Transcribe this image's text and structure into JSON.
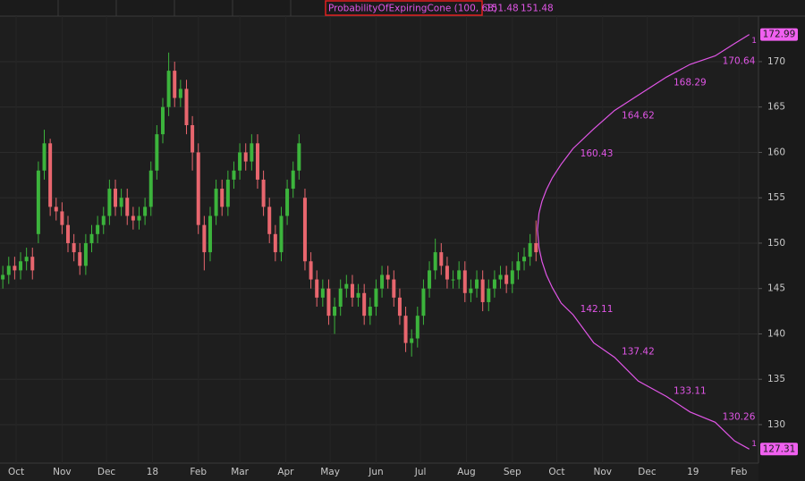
{
  "chart_data": {
    "type": "candlestick",
    "xlim": [
      -10.9,
      501.2
    ],
    "xticks": [
      {
        "value": 0,
        "label": "Oct"
      },
      {
        "value": 31,
        "label": "Nov"
      },
      {
        "value": 61,
        "label": "Dec"
      },
      {
        "value": 92,
        "label": "18"
      },
      {
        "value": 123,
        "label": "Feb"
      },
      {
        "value": 151,
        "label": "Mar"
      },
      {
        "value": 182,
        "label": "Apr"
      },
      {
        "value": 212,
        "label": "May"
      },
      {
        "value": 243,
        "label": "Jun"
      },
      {
        "value": 273,
        "label": "Jul"
      },
      {
        "value": 304,
        "label": "Aug"
      },
      {
        "value": 335,
        "label": "Sep"
      },
      {
        "value": 365,
        "label": "Oct"
      },
      {
        "value": 396,
        "label": "Nov"
      },
      {
        "value": 426,
        "label": "Dec"
      },
      {
        "value": 457,
        "label": "19"
      },
      {
        "value": 488,
        "label": "Feb"
      }
    ],
    "ylim": [
      125.76,
      175.02
    ],
    "yticks": [
      130,
      135,
      140,
      145,
      150,
      155,
      160,
      165,
      170
    ],
    "grid": true,
    "candles": {
      "up_color": "#3cb43c",
      "down_color": "#e8666e",
      "x": [
        -9,
        -5,
        -1,
        3,
        7,
        11,
        15,
        19,
        23,
        27,
        31,
        35,
        39,
        43,
        47,
        51,
        55,
        59,
        63,
        67,
        71,
        75,
        79,
        83,
        87,
        91,
        95,
        99,
        103,
        107,
        111,
        115,
        119,
        123,
        127,
        131,
        135,
        139,
        143,
        147,
        151,
        155,
        159,
        163,
        167,
        171,
        175,
        179,
        183,
        187,
        191,
        195,
        199,
        203,
        207,
        211,
        215,
        219,
        223,
        227,
        231,
        235,
        239,
        243,
        247,
        251,
        255,
        259,
        263,
        267,
        271,
        275,
        279,
        283,
        287,
        291,
        295,
        299,
        303,
        307,
        311,
        315,
        319,
        323,
        327,
        331,
        335,
        339,
        343,
        347,
        351
      ],
      "open": [
        146,
        146.5,
        147.5,
        147,
        148,
        148.5,
        151,
        158,
        161,
        154,
        153.5,
        152,
        150,
        149,
        147.5,
        150,
        151,
        152,
        153,
        156,
        154,
        155,
        153,
        152.5,
        153,
        154,
        158,
        162,
        165,
        169,
        166,
        167,
        163,
        160,
        152,
        149,
        153,
        156,
        154,
        157,
        158,
        160,
        159,
        161,
        157,
        154,
        151,
        149,
        153,
        156,
        158,
        155,
        148,
        146,
        144,
        145,
        142,
        143,
        145,
        145.5,
        144,
        144.5,
        142,
        143,
        145,
        146.5,
        146,
        144,
        142,
        139,
        139.5,
        142,
        145,
        147,
        149,
        147.5,
        146,
        146,
        147,
        144.5,
        145,
        146,
        143.5,
        145,
        146,
        146.5,
        145.5,
        147,
        148,
        148.5,
        150
      ],
      "high": [
        147.5,
        148.5,
        148.5,
        149,
        149.5,
        149.5,
        159,
        162.5,
        161.5,
        155,
        154.5,
        153,
        151,
        150,
        151,
        152,
        153,
        154,
        157,
        157,
        156,
        156,
        154,
        154,
        155,
        159,
        163,
        166,
        171,
        170,
        168,
        168,
        164,
        161,
        153,
        154,
        157,
        157,
        158,
        159,
        161,
        161,
        162,
        162,
        158,
        155,
        152,
        154,
        157,
        159,
        162,
        156,
        149,
        147,
        146,
        146,
        144,
        146,
        146.5,
        146.5,
        145.5,
        145.5,
        144,
        146,
        147.5,
        147.5,
        147,
        145,
        143,
        140.5,
        143,
        146,
        148,
        150.5,
        150,
        148.5,
        147,
        148,
        148,
        146,
        147,
        147,
        146,
        147,
        147.5,
        147.5,
        148,
        149,
        149.5,
        151,
        152.5
      ],
      "low": [
        145,
        145.5,
        146,
        146,
        147,
        146,
        150,
        157,
        153,
        152.5,
        151,
        149,
        148,
        146.5,
        146.5,
        149,
        150,
        151,
        152,
        153,
        153,
        152,
        151.5,
        151.5,
        152,
        153,
        157,
        161,
        164,
        165,
        165,
        162,
        158,
        151,
        147,
        148,
        152,
        153,
        153,
        156,
        157,
        158,
        158,
        156,
        153,
        150,
        148,
        148,
        152,
        155,
        157,
        147,
        145,
        143,
        143,
        141,
        140,
        142,
        144,
        143,
        143,
        141,
        141,
        142,
        144,
        145,
        143,
        141,
        138,
        137.5,
        138.5,
        141,
        144,
        146,
        146.5,
        145,
        145,
        145,
        143.5,
        143.5,
        144,
        142.5,
        142.5,
        144,
        145,
        144.5,
        144.5,
        146,
        147,
        147.5,
        148
      ],
      "close": [
        146.5,
        147.5,
        147,
        148,
        148.5,
        147,
        158,
        161,
        154,
        153.5,
        152,
        150,
        149,
        147.5,
        150,
        151,
        152,
        153,
        156,
        154,
        155,
        153,
        152.5,
        153,
        154,
        158,
        162,
        165,
        169,
        166,
        167,
        163,
        160,
        152,
        149,
        153,
        156,
        154,
        157,
        158,
        160,
        159,
        161,
        157,
        154,
        151,
        149,
        153,
        156,
        158,
        161,
        148,
        146,
        144,
        145,
        142,
        143,
        145,
        145.5,
        144,
        144.5,
        142,
        143,
        145,
        146.5,
        146,
        144,
        142,
        139,
        139.5,
        142,
        145,
        147,
        149,
        147.5,
        146,
        146,
        147,
        144.5,
        145,
        146,
        143.5,
        145,
        146,
        146.5,
        145.5,
        147,
        148,
        148.5,
        150,
        149
      ]
    },
    "study": {
      "name": "ProbabilityOfExpiringCone (100, 68)",
      "color": "#e055e6",
      "x": [
        352,
        353,
        355,
        358,
        362,
        368,
        376,
        390,
        404,
        420,
        439,
        455,
        472,
        485,
        495
      ],
      "upper": [
        151.48,
        153.3,
        154.6,
        155.9,
        157.2,
        158.7,
        160.43,
        162.6,
        164.62,
        166.3,
        168.29,
        169.7,
        170.64,
        172.0,
        172.99
      ],
      "lower": [
        151.48,
        149.5,
        148.0,
        146.5,
        145.1,
        143.4,
        142.11,
        139.0,
        137.42,
        134.8,
        133.11,
        131.4,
        130.26,
        128.2,
        127.31
      ],
      "upper_labels": [
        null,
        null,
        null,
        null,
        null,
        null,
        "160.43",
        null,
        "164.62",
        null,
        "168.29",
        null,
        "170.64",
        null,
        null
      ],
      "lower_labels": [
        null,
        null,
        null,
        null,
        null,
        null,
        "142.11",
        null,
        "137.42",
        null,
        "133.11",
        null,
        "130.26",
        null,
        null
      ],
      "end_labels": [
        "1",
        "1"
      ]
    }
  }
}
